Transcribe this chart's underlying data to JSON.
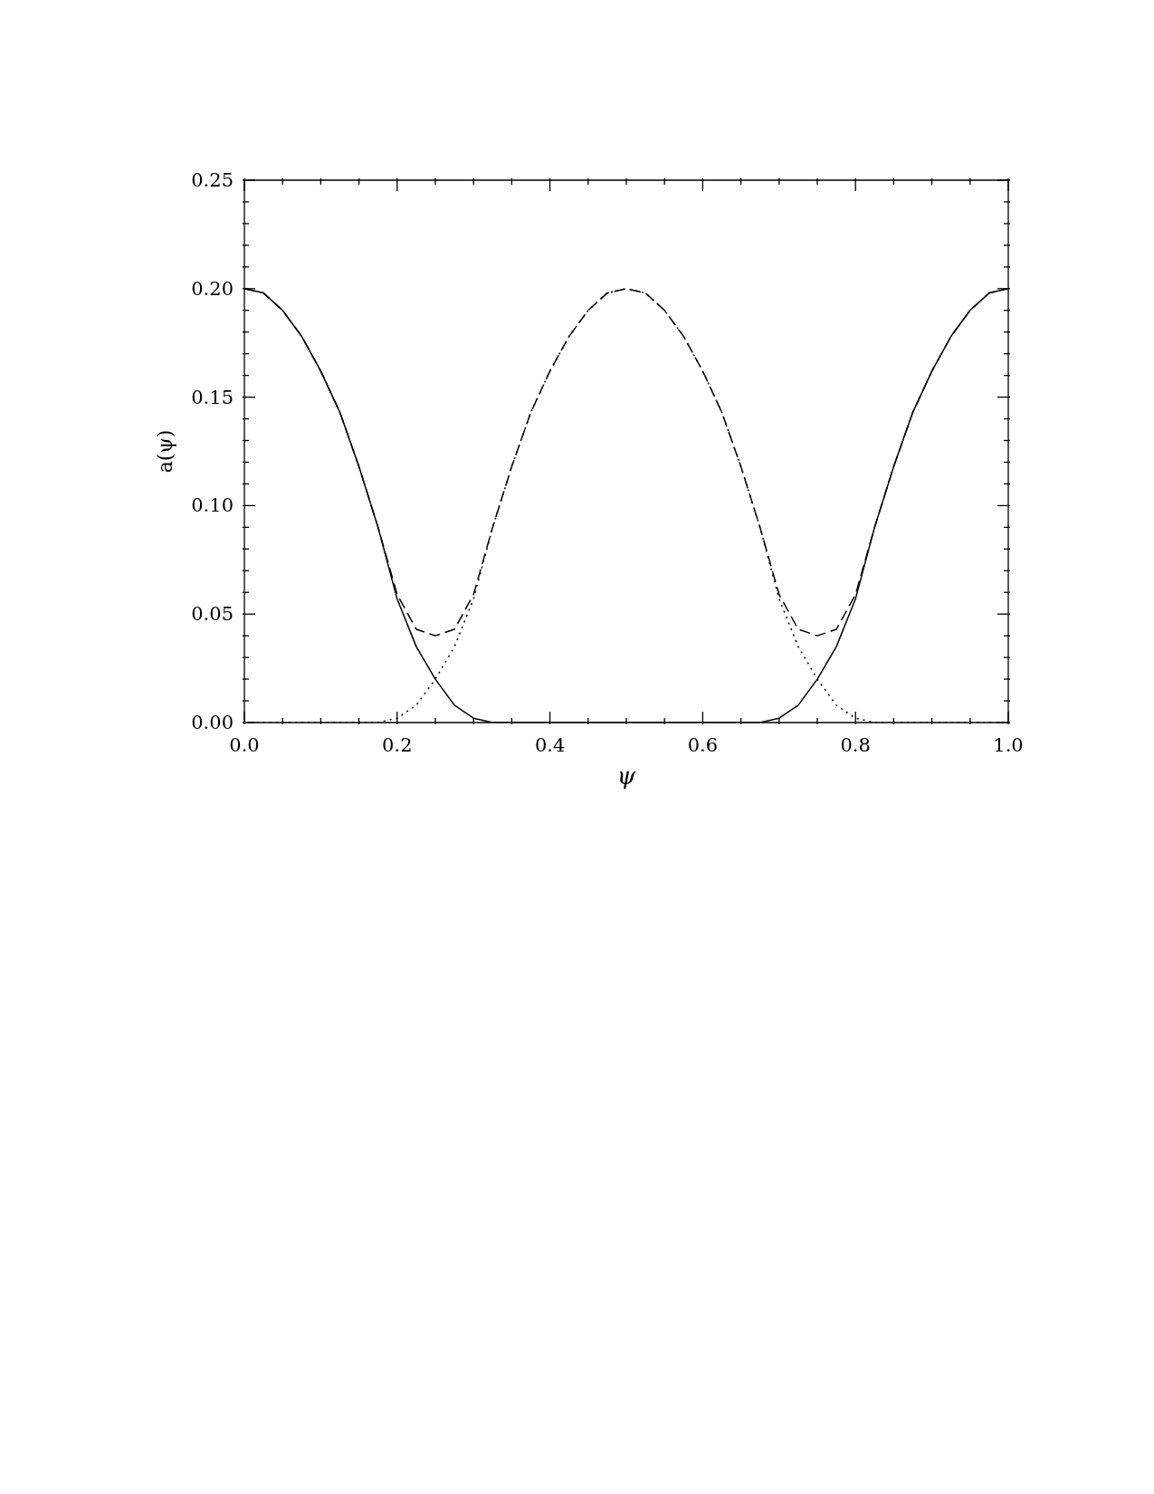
{
  "chart_data": {
    "type": "line",
    "xlabel": "ψ",
    "ylabel": "a(ψ)",
    "x": [
      0,
      0.025,
      0.05,
      0.075,
      0.1,
      0.125,
      0.15,
      0.175,
      0.2,
      0.225,
      0.25,
      0.275,
      0.3,
      0.325,
      0.35,
      0.375,
      0.4,
      0.425,
      0.45,
      0.475,
      0.5,
      0.525,
      0.55,
      0.575,
      0.6,
      0.625,
      0.65,
      0.675,
      0.7,
      0.725,
      0.75,
      0.775,
      0.8,
      0.825,
      0.85,
      0.875,
      0.9,
      0.925,
      0.95,
      0.975,
      1
    ],
    "series": [
      {
        "color": "#000000",
        "line_style": "solid",
        "values": [
          0.2,
          0.198,
          0.19,
          0.178,
          0.162,
          0.143,
          0.118,
          0.09,
          0.057,
          0.035,
          0.02,
          0.008,
          0.002,
          0,
          0,
          0,
          0,
          0,
          0,
          0,
          0,
          0,
          0,
          0,
          0,
          0,
          0,
          0,
          0.002,
          0.008,
          0.02,
          0.035,
          0.057,
          0.09,
          0.118,
          0.143,
          0.162,
          0.178,
          0.19,
          0.198,
          0.2
        ]
      },
      {
        "color": "#000000",
        "line_style": "dotted",
        "values": [
          0,
          0,
          0,
          0,
          0,
          0,
          0,
          0,
          0.002,
          0.008,
          0.02,
          0.035,
          0.057,
          0.09,
          0.118,
          0.143,
          0.162,
          0.178,
          0.19,
          0.198,
          0.2,
          0.198,
          0.19,
          0.178,
          0.162,
          0.143,
          0.118,
          0.09,
          0.057,
          0.035,
          0.02,
          0.008,
          0.002,
          0,
          0,
          0,
          0,
          0,
          0,
          0,
          0
        ]
      },
      {
        "color": "#000000",
        "line_style": "dashed",
        "values": [
          0.2,
          0.198,
          0.19,
          0.178,
          0.162,
          0.143,
          0.118,
          0.09,
          0.059,
          0.043,
          0.04,
          0.043,
          0.059,
          0.09,
          0.118,
          0.143,
          0.162,
          0.178,
          0.19,
          0.198,
          0.2,
          0.198,
          0.19,
          0.178,
          0.162,
          0.143,
          0.118,
          0.09,
          0.059,
          0.043,
          0.04,
          0.043,
          0.059,
          0.09,
          0.118,
          0.143,
          0.162,
          0.178,
          0.19,
          0.198,
          0.2
        ]
      }
    ],
    "xlim": [
      0,
      1
    ],
    "xticks": [
      {
        "value": 0,
        "label": "0.0"
      },
      {
        "value": 0.05,
        "label": null
      },
      {
        "value": 0.1,
        "label": null
      },
      {
        "value": 0.15,
        "label": null
      },
      {
        "value": 0.2,
        "label": "0.2"
      },
      {
        "value": 0.25,
        "label": null
      },
      {
        "value": 0.3,
        "label": null
      },
      {
        "value": 0.35,
        "label": null
      },
      {
        "value": 0.4,
        "label": "0.4"
      },
      {
        "value": 0.45,
        "label": null
      },
      {
        "value": 0.5,
        "label": null
      },
      {
        "value": 0.55,
        "label": null
      },
      {
        "value": 0.6,
        "label": "0.6"
      },
      {
        "value": 0.65,
        "label": null
      },
      {
        "value": 0.7,
        "label": null
      },
      {
        "value": 0.75,
        "label": null
      },
      {
        "value": 0.8,
        "label": "0.8"
      },
      {
        "value": 0.85,
        "label": null
      },
      {
        "value": 0.9,
        "label": null
      },
      {
        "value": 0.95,
        "label": null
      },
      {
        "value": 1,
        "label": "1.0"
      }
    ],
    "ylim": [
      0,
      0.25
    ],
    "yticks": [
      {
        "value": 0,
        "label": "0.00"
      },
      {
        "value": 0.01,
        "label": null
      },
      {
        "value": 0.02,
        "label": null
      },
      {
        "value": 0.03,
        "label": null
      },
      {
        "value": 0.04,
        "label": null
      },
      {
        "value": 0.05,
        "label": "0.05"
      },
      {
        "value": 0.06,
        "label": null
      },
      {
        "value": 0.07,
        "label": null
      },
      {
        "value": 0.08,
        "label": null
      },
      {
        "value": 0.09,
        "label": null
      },
      {
        "value": 0.1,
        "label": "0.10"
      },
      {
        "value": 0.11,
        "label": null
      },
      {
        "value": 0.12,
        "label": null
      },
      {
        "value": 0.13,
        "label": null
      },
      {
        "value": 0.14,
        "label": null
      },
      {
        "value": 0.15,
        "label": "0.15"
      },
      {
        "value": 0.16,
        "label": null
      },
      {
        "value": 0.17,
        "label": null
      },
      {
        "value": 0.18,
        "label": null
      },
      {
        "value": 0.19,
        "label": null
      },
      {
        "value": 0.2,
        "label": "0.20"
      },
      {
        "value": 0.21,
        "label": null
      },
      {
        "value": 0.22,
        "label": null
      },
      {
        "value": 0.23,
        "label": null
      },
      {
        "value": 0.24,
        "label": null
      },
      {
        "value": 0.25,
        "label": "0.25"
      }
    ]
  }
}
